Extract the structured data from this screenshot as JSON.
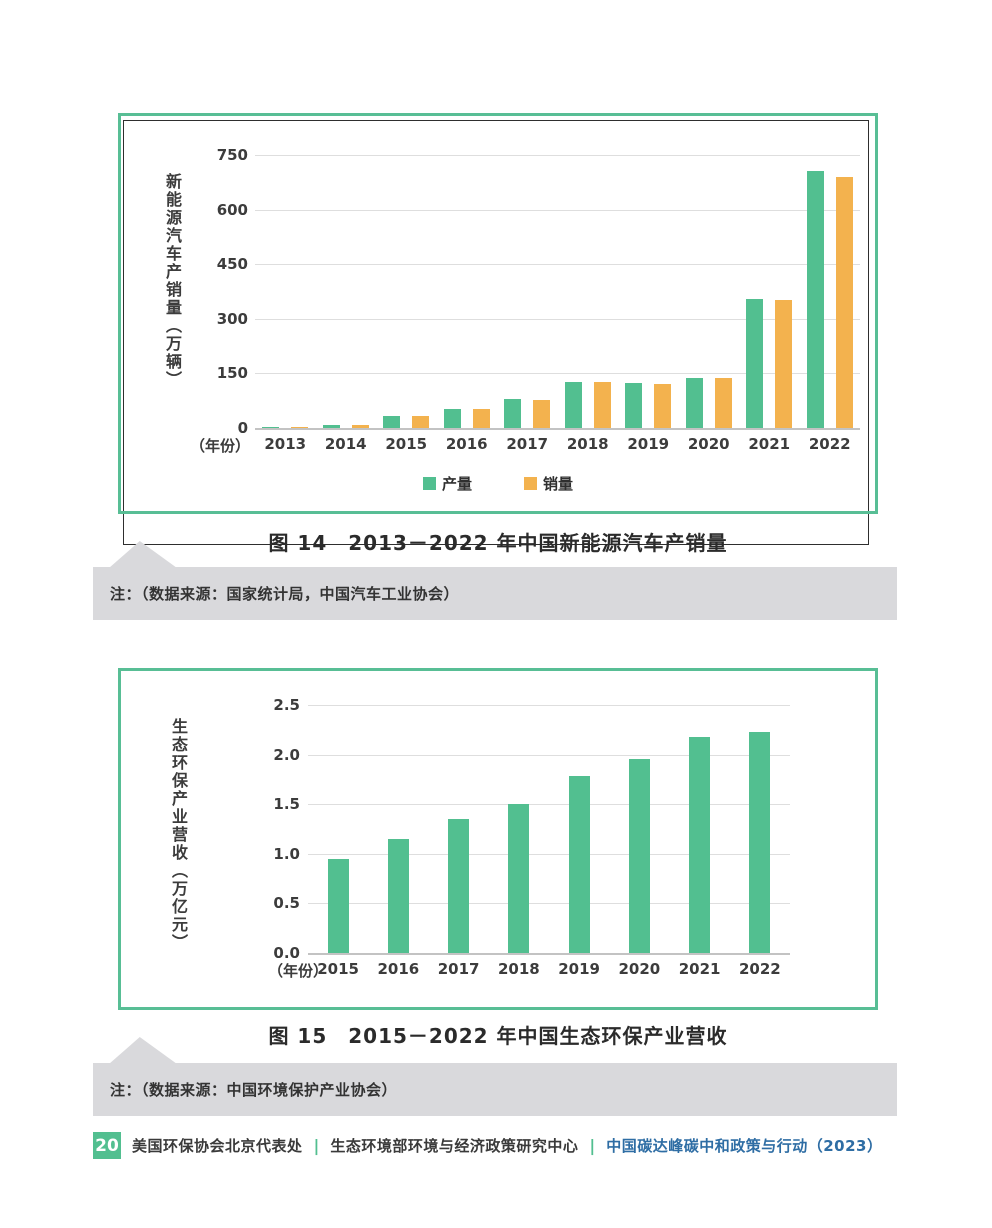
{
  "colors": {
    "bar_green": "#52BF90",
    "bar_orange": "#F3B24E",
    "box_border_green": "#58BE95",
    "note_band_gray": "#D9D9DC",
    "footer_blue": "#2E6DA4",
    "axis_text": "#3C3C3C"
  },
  "chart_data": [
    {
      "id": "fig14",
      "type": "bar",
      "title": "图 14　2013－2022 年中国新能源汽车产销量",
      "ylabel": "新能源汽车产销量（万辆）",
      "xlabel": "（年份）",
      "categories": [
        "2013",
        "2014",
        "2015",
        "2016",
        "2017",
        "2018",
        "2019",
        "2020",
        "2021",
        "2022"
      ],
      "series": [
        {
          "name": "产量",
          "color": "#52BF90",
          "values": [
            2,
            8,
            34,
            52,
            79,
            127,
            124,
            137,
            355,
            706
          ]
        },
        {
          "name": "销量",
          "color": "#F3B24E",
          "values": [
            2,
            8,
            33,
            51,
            78,
            126,
            121,
            137,
            352,
            689
          ]
        }
      ],
      "ylim": [
        0,
        750
      ],
      "yticks": [
        {
          "label": "0",
          "value": 0
        },
        {
          "label": "150",
          "value": 150
        },
        {
          "label": "300",
          "value": 300
        },
        {
          "label": "450",
          "value": 450
        },
        {
          "label": "600",
          "value": 600
        },
        {
          "label": "750",
          "value": 750
        }
      ],
      "grid": true,
      "legend_position": "bottom"
    },
    {
      "id": "fig15",
      "type": "bar",
      "title": "图 15　2015－2022 年中国生态环保产业营收",
      "ylabel": "生态环保产业营收（万亿元）",
      "xlabel": "（年份）",
      "categories": [
        "2015",
        "2016",
        "2017",
        "2018",
        "2019",
        "2020",
        "2021",
        "2022"
      ],
      "series": [
        {
          "name": "生态环保产业营收",
          "color": "#52BF90",
          "values": [
            0.95,
            1.15,
            1.35,
            1.5,
            1.78,
            1.96,
            2.18,
            2.23
          ]
        }
      ],
      "ylim": [
        0,
        2.5
      ],
      "yticks": [
        {
          "label": "0.0",
          "value": 0.0
        },
        {
          "label": "0.5",
          "value": 0.5
        },
        {
          "label": "1.0",
          "value": 1.0
        },
        {
          "label": "1.5",
          "value": 1.5
        },
        {
          "label": "2.0",
          "value": 2.0
        },
        {
          "label": "2.5",
          "value": 2.5
        }
      ],
      "grid": true,
      "legend_position": "none"
    }
  ],
  "notes": [
    {
      "text": "注：（数据来源：国家统计局，中国汽车工业协会）"
    },
    {
      "text": "注：（数据来源：中国环境保护产业协会）"
    }
  ],
  "footer": {
    "page_number": "20",
    "separator": "|",
    "items": [
      "美国环保协会北京代表处",
      "生态环境部环境与经济政策研究中心",
      "中国碳达峰碳中和政策与行动（2023）"
    ]
  }
}
